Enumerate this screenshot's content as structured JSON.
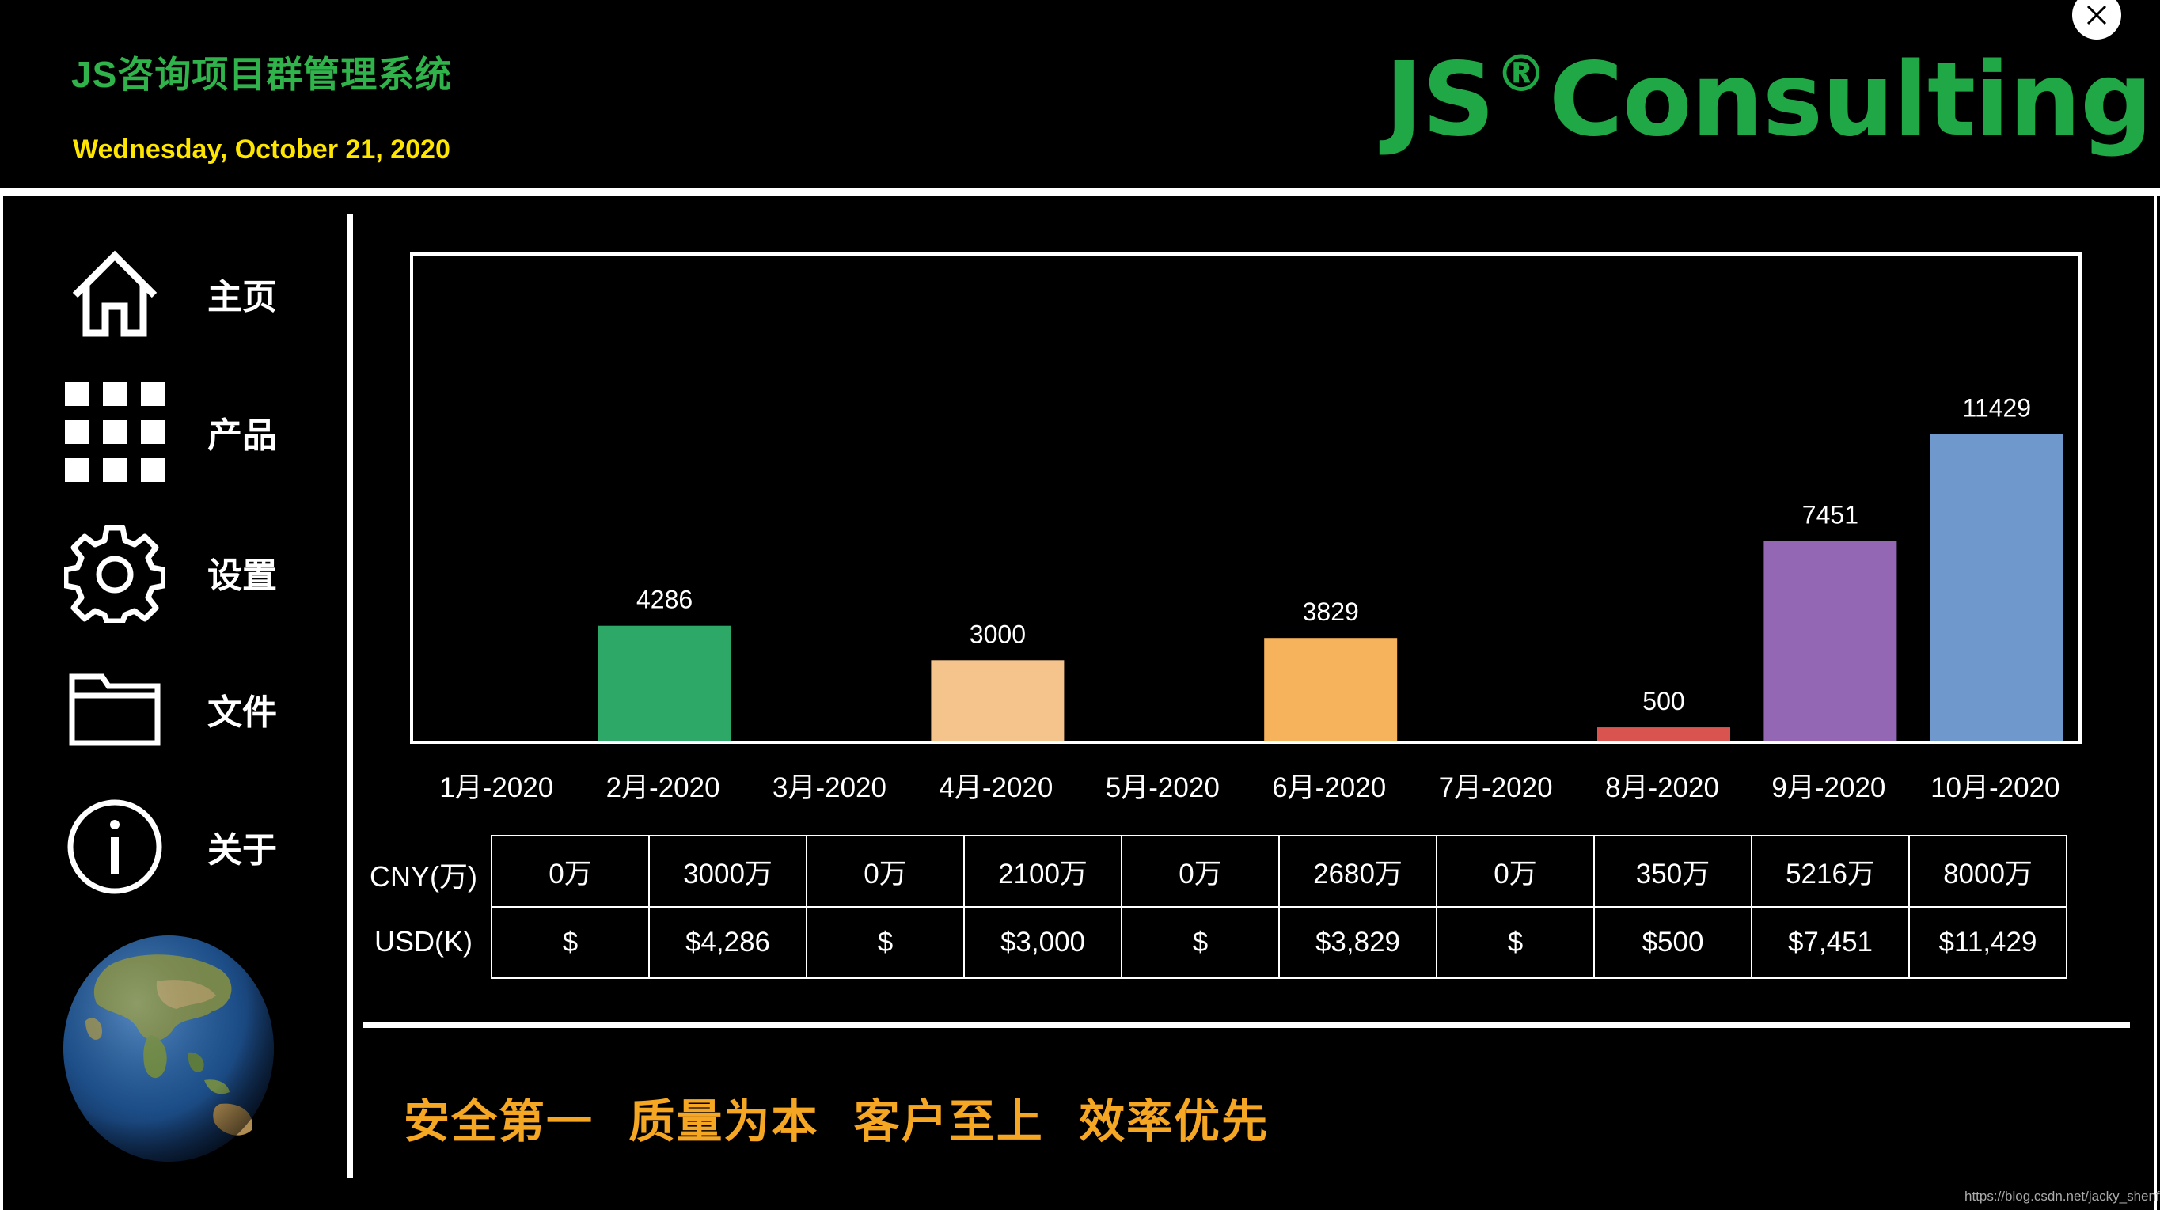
{
  "header": {
    "app_title": "JS咨询项目群管理系统",
    "date": "Wednesday, October 21, 2020",
    "logo_text": "JS",
    "logo_reg": "®",
    "logo_text2": "Consulting"
  },
  "colors": {
    "title_green": "#2fb34a",
    "logo_green": "#1fa845",
    "date_yellow": "#ffe600",
    "slogan_orange": "#f5a623",
    "background": "#000000"
  },
  "sidebar": {
    "items": [
      {
        "label": "主页",
        "icon": "home-icon"
      },
      {
        "label": "产品",
        "icon": "grid-icon"
      },
      {
        "label": "设置",
        "icon": "gear-icon"
      },
      {
        "label": "文件",
        "icon": "folder-icon"
      },
      {
        "label": "关于",
        "icon": "info-icon"
      }
    ],
    "globe_icon": "globe-icon"
  },
  "chart_data": {
    "type": "bar",
    "categories": [
      "1月-2020",
      "2月-2020",
      "3月-2020",
      "4月-2020",
      "5月-2020",
      "6月-2020",
      "7月-2020",
      "8月-2020",
      "9月-2020",
      "10月-2020"
    ],
    "values": [
      0,
      4286,
      0,
      3000,
      0,
      3829,
      0,
      500,
      7451,
      11429
    ],
    "data_labels": [
      "",
      "4286",
      "",
      "3000",
      "",
      "3829",
      "",
      "500",
      "7451",
      "11429"
    ],
    "colors": [
      "#2ea866",
      "#2ea866",
      "#f5c48c",
      "#f5c48c",
      "#f7b35b",
      "#f7b35b",
      "#d9534f",
      "#d9534f",
      "#9367b4",
      "#6f98cd"
    ],
    "ylim": [
      0,
      11800
    ],
    "grid": false,
    "title": "",
    "xlabel": "",
    "ylabel": ""
  },
  "table": {
    "rows": [
      {
        "label": "CNY(万)",
        "values": [
          "0万",
          "3000万",
          "0万",
          "2100万",
          "0万",
          "2680万",
          "0万",
          "350万",
          "5216万",
          "8000万"
        ]
      },
      {
        "label": "USD(K)",
        "values": [
          "$",
          "$4,286",
          "$",
          "$3,000",
          "$",
          "$3,829",
          "$",
          "$500",
          "$7,451",
          "$11,429"
        ]
      }
    ]
  },
  "slogan": "安全第一  质量为本  客户至上  效率优先",
  "watermark": "https://blog.csdn.net/jacky_shenfh"
}
